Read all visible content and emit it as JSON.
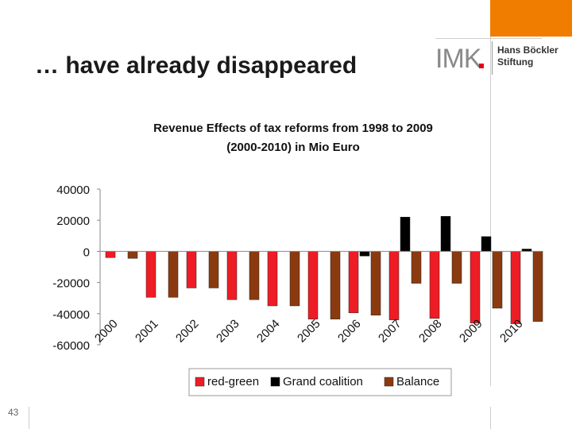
{
  "slide": {
    "title": "… have already disappeared",
    "page_number": "43",
    "logo_imk": "IMK",
    "logo_hbs_line1": "Hans Böckler",
    "logo_hbs_line2": "Stiftung",
    "accent_color": "#f07d00"
  },
  "chart_data": {
    "type": "bar",
    "title_line1": "Revenue Effects of tax reforms from 1998 to 2009",
    "title_line2": "(2000-2010) in Mio Euro",
    "categories": [
      "2000",
      "2001",
      "2002",
      "2003",
      "2004",
      "2005",
      "2006",
      "2007",
      "2008",
      "2009",
      "2010"
    ],
    "series": [
      {
        "name": "red-green",
        "color": "#ee1c25",
        "values": [
          -4000,
          -29500,
          -23500,
          -31000,
          -35000,
          -43500,
          -39500,
          -44000,
          -43000,
          -46000,
          -46500
        ]
      },
      {
        "name": "Grand coalition",
        "color": "#000000",
        "values": [
          0,
          0,
          0,
          0,
          0,
          0,
          -3000,
          22000,
          22500,
          9500,
          1500
        ]
      },
      {
        "name": "Balance",
        "color": "#8b3a0f",
        "values": [
          -4500,
          -29500,
          -23500,
          -31000,
          -35000,
          -43500,
          -41000,
          -20500,
          -20500,
          -36500,
          -45000
        ]
      }
    ],
    "ylim": [
      -60000,
      40000
    ],
    "yticks": [
      "40000",
      "20000",
      "0",
      "-20000",
      "-40000",
      "-60000"
    ],
    "legend_position": "bottom",
    "grid": false
  }
}
